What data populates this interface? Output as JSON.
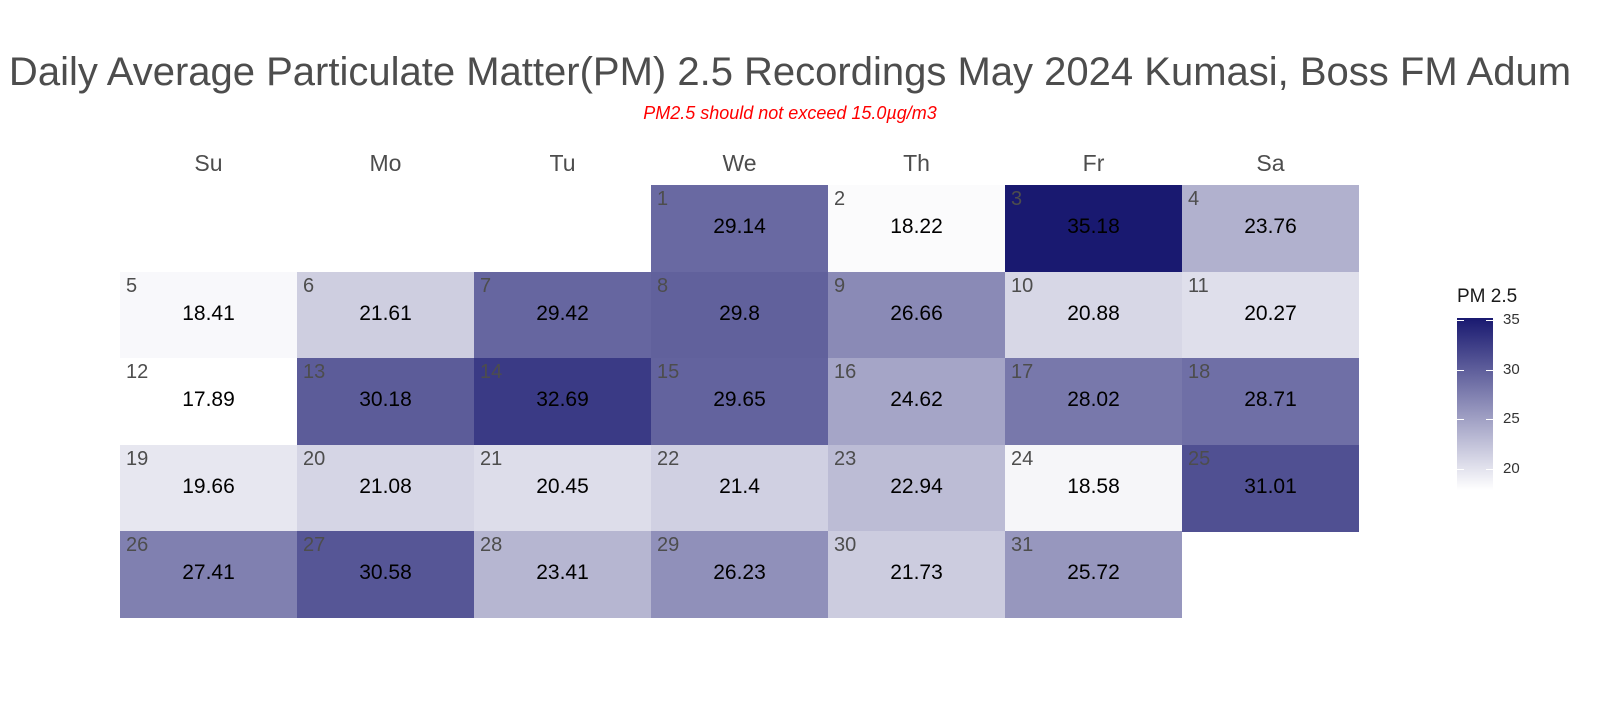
{
  "chart_data": {
    "type": "heatmap",
    "title": "Daily Average Particulate Matter(PM) 2.5 Recordings May 2024 Kumasi, Boss FM Adum",
    "subtitle": "PM2.5 should not exceed 15.0µg/m3",
    "weekdays": [
      "Su",
      "Mo",
      "Tu",
      "We",
      "Th",
      "Fr",
      "Sa"
    ],
    "first_weekday_index": 3,
    "days": [
      {
        "day": "1",
        "value": 29.14
      },
      {
        "day": "2",
        "value": 18.22
      },
      {
        "day": "3",
        "value": 35.18
      },
      {
        "day": "4",
        "value": 23.76
      },
      {
        "day": "5",
        "value": 18.41
      },
      {
        "day": "6",
        "value": 21.61
      },
      {
        "day": "7",
        "value": 29.42
      },
      {
        "day": "8",
        "value": 29.8
      },
      {
        "day": "9",
        "value": 26.66
      },
      {
        "day": "10",
        "value": 20.88
      },
      {
        "day": "11",
        "value": 20.27
      },
      {
        "day": "12",
        "value": 17.89
      },
      {
        "day": "13",
        "value": 30.18
      },
      {
        "day": "14",
        "value": 32.69
      },
      {
        "day": "15",
        "value": 29.65
      },
      {
        "day": "16",
        "value": 24.62
      },
      {
        "day": "17",
        "value": 28.02
      },
      {
        "day": "18",
        "value": 28.71
      },
      {
        "day": "19",
        "value": 19.66
      },
      {
        "day": "20",
        "value": 21.08
      },
      {
        "day": "21",
        "value": 20.45
      },
      {
        "day": "22",
        "value": 21.4
      },
      {
        "day": "23",
        "value": 22.94
      },
      {
        "day": "24",
        "value": 18.58
      },
      {
        "day": "25",
        "value": 31.01
      },
      {
        "day": "26",
        "value": 27.41
      },
      {
        "day": "27",
        "value": 30.58
      },
      {
        "day": "28",
        "value": 23.41
      },
      {
        "day": "29",
        "value": 26.23
      },
      {
        "day": "30",
        "value": 21.73
      },
      {
        "day": "31",
        "value": 25.72
      }
    ],
    "legend": {
      "title": "PM 2.5",
      "ticks": [
        20,
        25,
        30,
        35
      ],
      "range": [
        17.89,
        35.18
      ],
      "low_color": "#ffffff",
      "high_color": "#191970"
    }
  }
}
